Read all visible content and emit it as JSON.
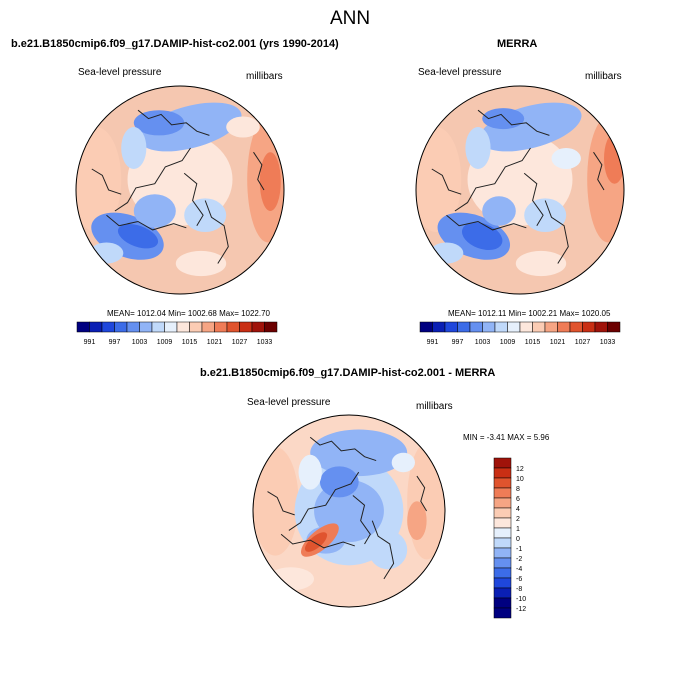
{
  "page": {
    "title": "ANN"
  },
  "colors": {
    "levels": [
      "#000080",
      "#0a1fb4",
      "#1f47dc",
      "#3c6ce8",
      "#6590f0",
      "#91b4f6",
      "#c0d9fa",
      "#e6f0fc",
      "#fde7dc",
      "#fbccb4",
      "#f6a584",
      "#ef7c57",
      "#e0542e",
      "#c92f14",
      "#a0130a",
      "#6c0000"
    ],
    "land": "#222222",
    "ocean_ring": "#f5c7b0"
  },
  "panels": [
    {
      "title": "b.e21.B1850cmip6.f09_g17.DAMIP-hist-co2.001 (yrs 1990-2014)",
      "variable": "Sea-level pressure",
      "units": "millibars",
      "stats": "MEAN= 1012.04   Min= 1002.68   Max= 1022.70",
      "colorbar_ticks": [
        "991",
        "997",
        "1003",
        "1009",
        "1015",
        "1021",
        "1027",
        "1033"
      ]
    },
    {
      "title": "MERRA",
      "variable": "Sea-level pressure",
      "units": "millibars",
      "stats": "MEAN= 1012.11   Min= 1002.21   Max= 1020.05",
      "colorbar_ticks": [
        "991",
        "997",
        "1003",
        "1009",
        "1015",
        "1021",
        "1027",
        "1033"
      ]
    },
    {
      "title": "b.e21.B1850cmip6.f09_g17.DAMIP-hist-co2.001 - MERRA",
      "variable": "Sea-level pressure",
      "units": "millibars",
      "stats": "MIN =  -3.41 MAX =   5.96",
      "colorbar_ticks": [
        "12",
        "10",
        "8",
        "6",
        "4",
        "2",
        "1",
        "0",
        "-1",
        "-2",
        "-4",
        "-6",
        "-8",
        "-10",
        "-12"
      ]
    }
  ]
}
